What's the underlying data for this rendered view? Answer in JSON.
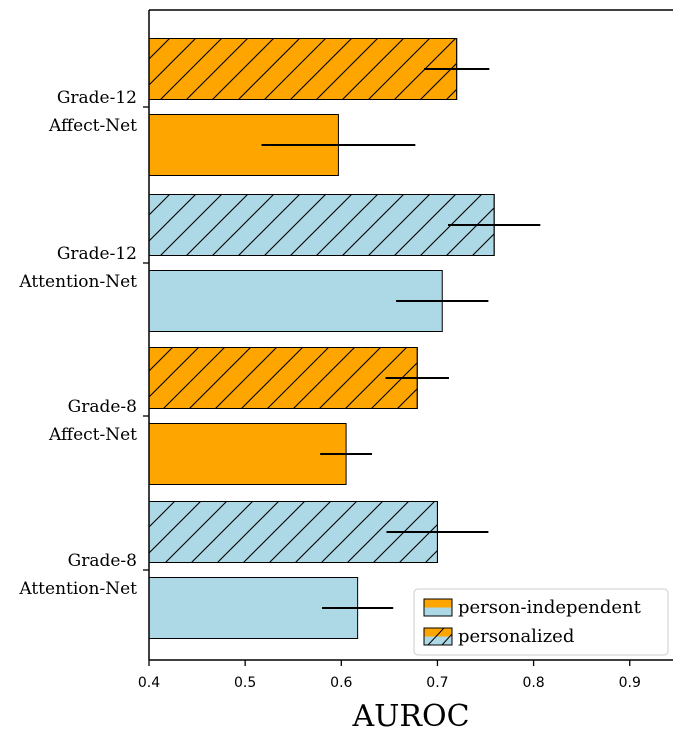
{
  "chart_data": {
    "type": "bar",
    "orientation": "horizontal",
    "xlabel": "AUROC",
    "xlim": [
      0.4,
      0.945
    ],
    "xticks": [
      "0.4",
      "0.5",
      "0.6",
      "0.7",
      "0.8",
      "0.9"
    ],
    "categories": [
      {
        "line1": "Grade-12",
        "line2": "Affect-Net"
      },
      {
        "line1": "Grade-12",
        "line2": "Attention-Net"
      },
      {
        "line1": "Grade-8",
        "line2": "Affect-Net"
      },
      {
        "line1": "Grade-8",
        "line2": "Attention-Net"
      }
    ],
    "series": [
      {
        "name": "person-independent",
        "hatched": false,
        "values": [
          0.597,
          0.705,
          0.605,
          0.617
        ],
        "errors": [
          0.08,
          0.048,
          0.027,
          0.037
        ]
      },
      {
        "name": "personalized",
        "hatched": true,
        "values": [
          0.72,
          0.759,
          0.679,
          0.7
        ],
        "errors": [
          0.034,
          0.048,
          0.033,
          0.053
        ]
      }
    ],
    "bar_colors": [
      "#FFA500",
      "#ADD8E6",
      "#FFA500",
      "#ADD8E6"
    ],
    "legend": {
      "placement": "lower-right",
      "entries": [
        "person-independent",
        "personalized"
      ]
    },
    "grid": false
  }
}
